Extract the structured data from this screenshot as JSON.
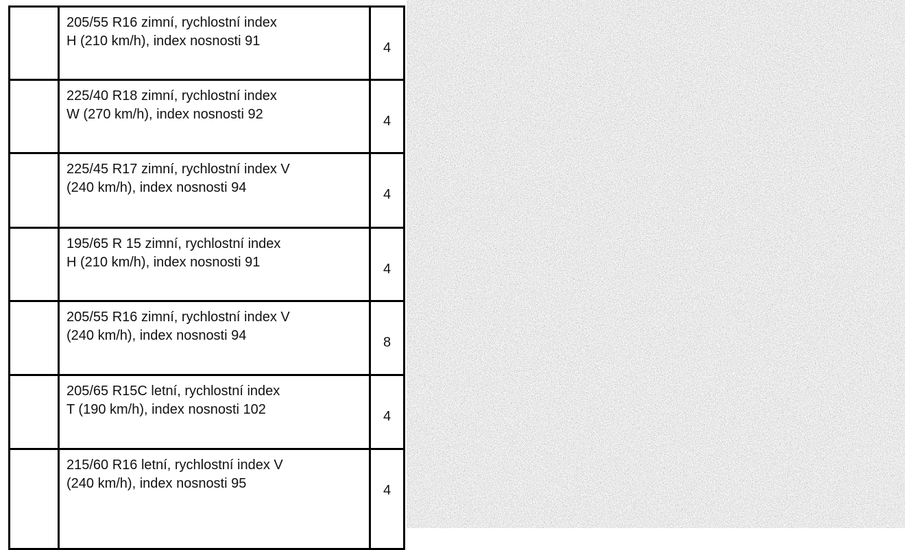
{
  "table": {
    "rows": [
      {
        "description": [
          "205/55 R16 zimní, rychlostní index",
          "H (210 km/h), index nosnosti 91"
        ],
        "quantity": 4
      },
      {
        "description": [
          "225/40 R18 zimní, rychlostní index",
          "W (270 km/h), index nosnosti 92"
        ],
        "quantity": 4
      },
      {
        "description": [
          "225/45 R17 zimní, rychlostní index V",
          "(240 km/h), index nosnosti 94"
        ],
        "quantity": 4
      },
      {
        "description": [
          "195/65 R 15 zimní, rychlostní index",
          "H (210 km/h), index nosnosti 91"
        ],
        "quantity": 4
      },
      {
        "description": [
          "205/55 R16 zimní, rychlostní index V",
          "(240 km/h), index nosnosti 94"
        ],
        "quantity": 8
      },
      {
        "description": [
          "205/65 R15C letní, rychlostní index",
          "T (190 km/h), index nosnosti 102"
        ],
        "quantity": 4
      },
      {
        "description": [
          "215/60 R16 letní, rychlostní index V",
          "(240 km/h), index nosnosti 95"
        ],
        "quantity": 4
      }
    ]
  }
}
